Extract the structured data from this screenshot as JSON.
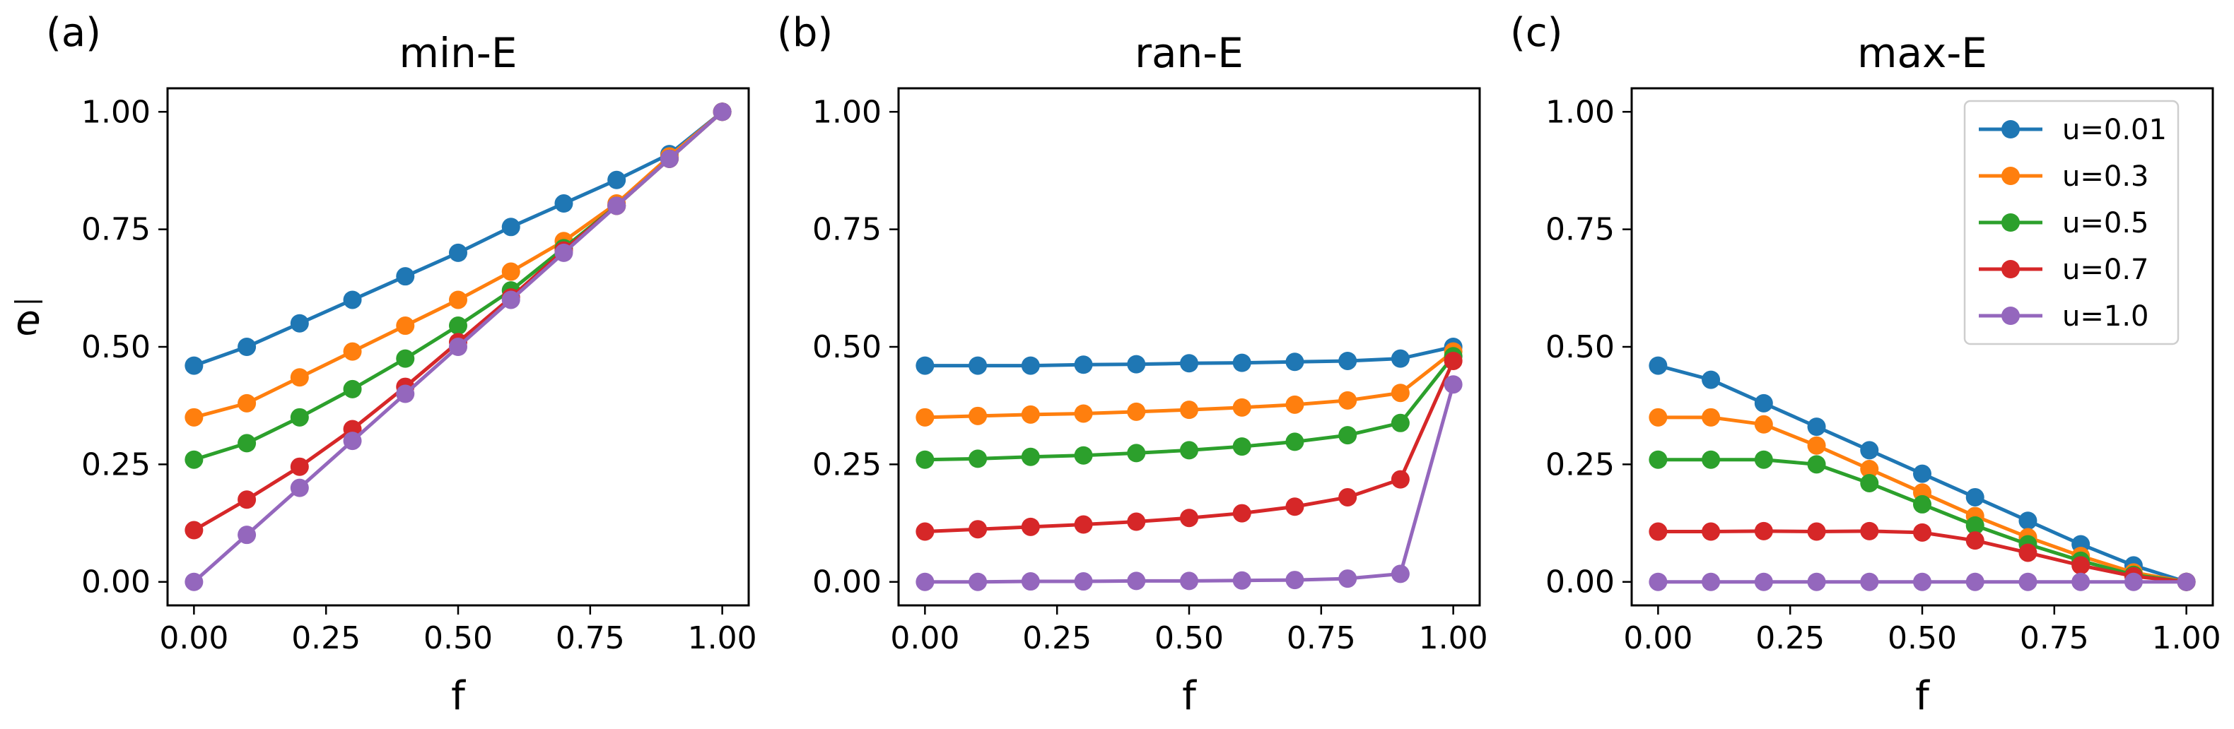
{
  "figure": {
    "ylabel_symbol": "e",
    "xlabel": "f",
    "legend_placement": "top-right of panel (c)"
  },
  "series_meta": [
    {
      "name": "u=0.01",
      "color": "#1f77b4"
    },
    {
      "name": "u=0.3",
      "color": "#ff7f0e"
    },
    {
      "name": "u=0.5",
      "color": "#2ca02c"
    },
    {
      "name": "u=0.7",
      "color": "#d62728"
    },
    {
      "name": "u=1.0",
      "color": "#9467bd"
    }
  ],
  "chart_data": [
    {
      "type": "line",
      "panel_label": "(a)",
      "title": "min-E",
      "xlabel": "f",
      "ylabel": "ē",
      "xlim": [
        -0.05,
        1.05
      ],
      "ylim": [
        -0.05,
        1.05
      ],
      "xticks": [
        "0.00",
        "0.25",
        "0.50",
        "0.75",
        "1.00"
      ],
      "yticks": [
        "0.00",
        "0.25",
        "0.50",
        "0.75",
        "1.00"
      ],
      "x": [
        0.0,
        0.1,
        0.2,
        0.3,
        0.4,
        0.5,
        0.6,
        0.7,
        0.8,
        0.9,
        1.0
      ],
      "series": [
        {
          "name": "u=0.01",
          "values": [
            0.46,
            0.5,
            0.55,
            0.6,
            0.65,
            0.7,
            0.755,
            0.805,
            0.855,
            0.91,
            1.0
          ]
        },
        {
          "name": "u=0.3",
          "values": [
            0.35,
            0.38,
            0.435,
            0.49,
            0.545,
            0.6,
            0.66,
            0.725,
            0.805,
            0.905,
            1.0
          ]
        },
        {
          "name": "u=0.5",
          "values": [
            0.26,
            0.295,
            0.35,
            0.41,
            0.475,
            0.545,
            0.62,
            0.71,
            0.8,
            0.9,
            1.0
          ]
        },
        {
          "name": "u=0.7",
          "values": [
            0.11,
            0.175,
            0.245,
            0.325,
            0.415,
            0.51,
            0.605,
            0.705,
            0.8,
            0.9,
            1.0
          ]
        },
        {
          "name": "u=1.0",
          "values": [
            0.0,
            0.1,
            0.2,
            0.3,
            0.4,
            0.5,
            0.6,
            0.7,
            0.8,
            0.9,
            1.0
          ]
        }
      ]
    },
    {
      "type": "line",
      "panel_label": "(b)",
      "title": "ran-E",
      "xlabel": "f",
      "ylabel": "",
      "xlim": [
        -0.05,
        1.05
      ],
      "ylim": [
        -0.05,
        1.05
      ],
      "xticks": [
        "0.00",
        "0.25",
        "0.50",
        "0.75",
        "1.00"
      ],
      "yticks": [
        "0.00",
        "0.25",
        "0.50",
        "0.75",
        "1.00"
      ],
      "x": [
        0.0,
        0.1,
        0.2,
        0.3,
        0.4,
        0.5,
        0.6,
        0.7,
        0.8,
        0.9,
        1.0
      ],
      "series": [
        {
          "name": "u=0.01",
          "values": [
            0.46,
            0.46,
            0.46,
            0.462,
            0.463,
            0.465,
            0.466,
            0.468,
            0.47,
            0.475,
            0.5
          ]
        },
        {
          "name": "u=0.3",
          "values": [
            0.35,
            0.353,
            0.356,
            0.358,
            0.362,
            0.366,
            0.371,
            0.377,
            0.386,
            0.402,
            0.49
          ]
        },
        {
          "name": "u=0.5",
          "values": [
            0.26,
            0.262,
            0.266,
            0.269,
            0.274,
            0.28,
            0.288,
            0.298,
            0.312,
            0.338,
            0.48
          ]
        },
        {
          "name": "u=0.7",
          "values": [
            0.107,
            0.112,
            0.117,
            0.122,
            0.128,
            0.136,
            0.146,
            0.16,
            0.18,
            0.218,
            0.47
          ]
        },
        {
          "name": "u=1.0",
          "values": [
            0.0,
            0.0,
            0.001,
            0.001,
            0.002,
            0.002,
            0.003,
            0.004,
            0.007,
            0.017,
            0.42
          ]
        }
      ]
    },
    {
      "type": "line",
      "panel_label": "(c)",
      "title": "max-E",
      "xlabel": "f",
      "ylabel": "",
      "xlim": [
        -0.05,
        1.05
      ],
      "ylim": [
        -0.05,
        1.05
      ],
      "xticks": [
        "0.00",
        "0.25",
        "0.50",
        "0.75",
        "1.00"
      ],
      "yticks": [
        "0.00",
        "0.25",
        "0.50",
        "0.75",
        "1.00"
      ],
      "legend": [
        "u=0.01",
        "u=0.3",
        "u=0.5",
        "u=0.7",
        "u=1.0"
      ],
      "x": [
        0.0,
        0.1,
        0.2,
        0.3,
        0.4,
        0.5,
        0.6,
        0.7,
        0.8,
        0.9,
        1.0
      ],
      "series": [
        {
          "name": "u=0.01",
          "values": [
            0.46,
            0.43,
            0.38,
            0.33,
            0.28,
            0.23,
            0.18,
            0.13,
            0.08,
            0.035,
            0.0
          ]
        },
        {
          "name": "u=0.3",
          "values": [
            0.35,
            0.35,
            0.335,
            0.29,
            0.24,
            0.19,
            0.14,
            0.095,
            0.055,
            0.02,
            0.0
          ]
        },
        {
          "name": "u=0.5",
          "values": [
            0.26,
            0.26,
            0.26,
            0.25,
            0.21,
            0.165,
            0.12,
            0.08,
            0.045,
            0.015,
            0.0
          ]
        },
        {
          "name": "u=0.7",
          "values": [
            0.107,
            0.107,
            0.108,
            0.107,
            0.108,
            0.105,
            0.088,
            0.062,
            0.035,
            0.012,
            0.0
          ]
        },
        {
          "name": "u=1.0",
          "values": [
            0.0,
            0.0,
            0.0,
            0.0,
            0.0,
            0.0,
            0.0,
            0.0,
            0.0,
            0.0,
            0.0
          ]
        }
      ]
    }
  ]
}
